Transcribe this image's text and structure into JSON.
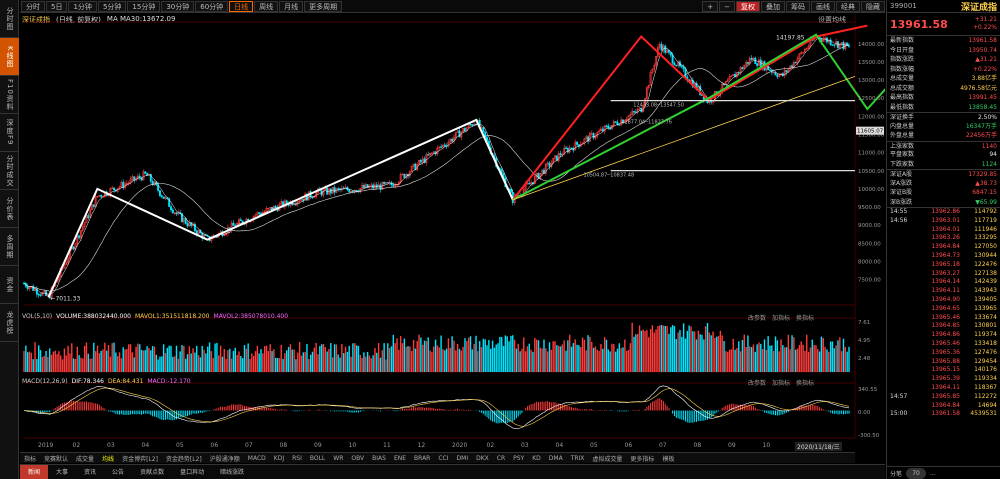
{
  "nav": [
    {
      "label": "分时图",
      "active": false
    },
    {
      "label": "K线图",
      "active": true
    },
    {
      "label": "F10资料",
      "active": false
    },
    {
      "label": "深度F9",
      "active": false
    },
    {
      "label": "分时成交",
      "active": false
    },
    {
      "label": "分价表",
      "active": false
    },
    {
      "label": "多周期",
      "active": false
    },
    {
      "label": "资金",
      "active": false
    },
    {
      "label": "龙虎榜",
      "active": false
    }
  ],
  "periods": [
    {
      "label": "分时",
      "active": false
    },
    {
      "label": "5日",
      "active": false
    },
    {
      "label": "1分钟",
      "active": false
    },
    {
      "label": "5分钟",
      "active": false
    },
    {
      "label": "15分钟",
      "active": false
    },
    {
      "label": "30分钟",
      "active": false
    },
    {
      "label": "60分钟",
      "active": false
    },
    {
      "label": "日线",
      "active": true
    },
    {
      "label": "周线",
      "active": false
    },
    {
      "label": "月线",
      "active": false
    },
    {
      "label": "更多周期",
      "active": false
    }
  ],
  "tools": [
    {
      "label": "+",
      "hl": false
    },
    {
      "label": "−",
      "hl": false
    },
    {
      "label": "复权",
      "hl": true
    },
    {
      "label": "叠加",
      "hl": false
    },
    {
      "label": "筹码",
      "hl": false
    },
    {
      "label": "画线",
      "hl": false
    },
    {
      "label": "经典",
      "hl": false
    },
    {
      "label": "隐藏",
      "hl": false
    }
  ],
  "chart_title": {
    "name": "深证成指",
    "mode": "(日线, 前复权)",
    "ma": "MA  MA30:13672.09"
  },
  "settings_label": "设置均线",
  "vol_title": {
    "name": "VOL(5,10)",
    "vol": "VOLUME:388032440.000",
    "ma1": "MAVOL1:351511818.200",
    "ma2": "MAVOL2:385078010.400"
  },
  "macd_title": {
    "name": "MACD(12,26,9)",
    "dif": "DIF:78.346",
    "dea": "DEA:84.431",
    "macd": "MACD:-12.170"
  },
  "panel_controls": {
    "params": "改参数",
    "add": "加指标",
    "switch": "换指标"
  },
  "axis": {
    "price": [
      "14000.00",
      "13500.00",
      "13000.00",
      "12500.00",
      "12000.00",
      "11500.00",
      "11000.00",
      "10500.00",
      "10000.00",
      "9500.00",
      "9000.00",
      "8500.00",
      "8000.00",
      "7500.00"
    ],
    "current_price_tag": "11605.07",
    "vol": [
      "7.61",
      "4.95",
      "2.48"
    ],
    "macd": [
      "340.55",
      "0.00",
      "-300.50"
    ]
  },
  "annotations": {
    "low": "←7011.33",
    "high": "14197.85",
    "level1": "12433.08─13547.50",
    "level2": "11877.04─11827.76",
    "level3": "10504.87─10837.48"
  },
  "dates": [
    "2019",
    "02",
    "03",
    "04",
    "05",
    "06",
    "07",
    "08",
    "09",
    "10",
    "11",
    "12",
    "2020",
    "02",
    "03",
    "04",
    "05",
    "06",
    "07",
    "08",
    "09",
    "10",
    "11",
    "12"
  ],
  "date_stamp": "2020/11/18/三",
  "indicators": [
    "指标",
    "竞赛默认",
    "成交量",
    "均线",
    "资金博弈[L2]",
    "资金趋势[L2]",
    "沪股通净额",
    "MACD",
    "KDJ",
    "RSI",
    "BOLL",
    "WR",
    "OBV",
    "BIAS",
    "ENE",
    "BRAR",
    "CCI",
    "DMI",
    "DKX",
    "CR",
    "PSY",
    "KD",
    "DMA",
    "TRIX",
    "虚拟成交量",
    "更多指标",
    "模板"
  ],
  "active_indicator": "均线",
  "bottom_tabs": [
    {
      "label": "新闻",
      "on": true
    },
    {
      "label": "大事",
      "on": false
    },
    {
      "label": "资讯",
      "on": false
    },
    {
      "label": "公告",
      "on": false
    },
    {
      "label": "贡献点数",
      "on": false
    },
    {
      "label": "盘口异动",
      "on": false
    },
    {
      "label": "暗线涨跌",
      "on": false
    }
  ],
  "quote": {
    "code": "399001",
    "name": "深证成指",
    "price": "13961.58",
    "change": "+31.21",
    "pct": "+0.22%",
    "stats": [
      {
        "k": "最新指数",
        "v": "13961.58",
        "c": "red"
      },
      {
        "k": "今日开盘",
        "v": "13950.74",
        "c": "red"
      },
      {
        "k": "指数涨跌",
        "v": "▲31.21",
        "c": "red"
      },
      {
        "k": "指数涨幅",
        "v": "+0.22%",
        "c": "red"
      },
      {
        "k": "总成交量",
        "v": "3.88亿手",
        "c": "yellow"
      },
      {
        "k": "总成交额",
        "v": "4976.58亿元",
        "c": "yellow"
      },
      {
        "k": "最高指数",
        "v": "13991.45",
        "c": "red"
      },
      {
        "k": "最低指数",
        "v": "13858.45",
        "c": "green"
      },
      {
        "k": "深证换手",
        "v": "2.50%",
        "c": "white",
        "sep": true
      },
      {
        "k": "内盘总量",
        "v": "16347万手",
        "c": "green"
      },
      {
        "k": "外盘总量",
        "v": "22456万手",
        "c": "red"
      },
      {
        "k": "上涨家数",
        "v": "1140",
        "c": "red",
        "sep": true
      },
      {
        "k": "平盘家数",
        "v": "94",
        "c": "white"
      },
      {
        "k": "下跌家数",
        "v": "1124",
        "c": "green"
      },
      {
        "k": "深证A股",
        "v": "17329.85",
        "c": "red",
        "sep": true
      },
      {
        "k": "深A涨跌",
        "v": "▲38.73",
        "c": "red"
      },
      {
        "k": "深证B股",
        "v": "6847.15",
        "c": "red"
      },
      {
        "k": "深B涨跌",
        "v": "▼65.99",
        "c": "green"
      }
    ],
    "ticks": [
      {
        "t": "14:55",
        "p": "13962.86",
        "v": "114792",
        "c": "red"
      },
      {
        "t": "14:56",
        "p": "13963.01",
        "v": "117719",
        "c": "red"
      },
      {
        "t": "",
        "p": "13964.01",
        "v": "111946",
        "c": "red"
      },
      {
        "t": "",
        "p": "13963.26",
        "v": "133295",
        "c": "red"
      },
      {
        "t": "",
        "p": "13964.84",
        "v": "127050",
        "c": "red"
      },
      {
        "t": "",
        "p": "13964.73",
        "v": "130944",
        "c": "red"
      },
      {
        "t": "",
        "p": "13965.18",
        "v": "122476",
        "c": "red"
      },
      {
        "t": "",
        "p": "13963.27",
        "v": "127138",
        "c": "red"
      },
      {
        "t": "",
        "p": "13964.14",
        "v": "142439",
        "c": "red"
      },
      {
        "t": "",
        "p": "13964.11",
        "v": "143943",
        "c": "red"
      },
      {
        "t": "",
        "p": "13964.90",
        "v": "139405",
        "c": "red"
      },
      {
        "t": "",
        "p": "13964.65",
        "v": "133965",
        "c": "red"
      },
      {
        "t": "",
        "p": "13965.46",
        "v": "133674",
        "c": "red"
      },
      {
        "t": "",
        "p": "13964.85",
        "v": "130801",
        "c": "red"
      },
      {
        "t": "",
        "p": "13964.86",
        "v": "119374",
        "c": "red"
      },
      {
        "t": "",
        "p": "13965.46",
        "v": "133418",
        "c": "red"
      },
      {
        "t": "",
        "p": "13965.36",
        "v": "127476",
        "c": "red"
      },
      {
        "t": "",
        "p": "13965.88",
        "v": "129454",
        "c": "red"
      },
      {
        "t": "",
        "p": "13965.15",
        "v": "140176",
        "c": "red"
      },
      {
        "t": "",
        "p": "13965.39",
        "v": "119334",
        "c": "red"
      },
      {
        "t": "",
        "p": "13964.11",
        "v": "118367",
        "c": "red"
      },
      {
        "t": "14:57",
        "p": "13965.85",
        "v": "112272",
        "c": "red"
      },
      {
        "t": "",
        "p": "13964.84",
        "v": "14694",
        "c": "red"
      },
      {
        "t": "15:00",
        "p": "13961.58",
        "v": "4539531",
        "c": "red"
      }
    ],
    "foot": {
      "tab": "分笔",
      "circle": "70",
      "extra": "..."
    }
  },
  "colors": {
    "up": "#ff3b3b",
    "down": "#00e5ff",
    "accent": "#ff6a00"
  }
}
